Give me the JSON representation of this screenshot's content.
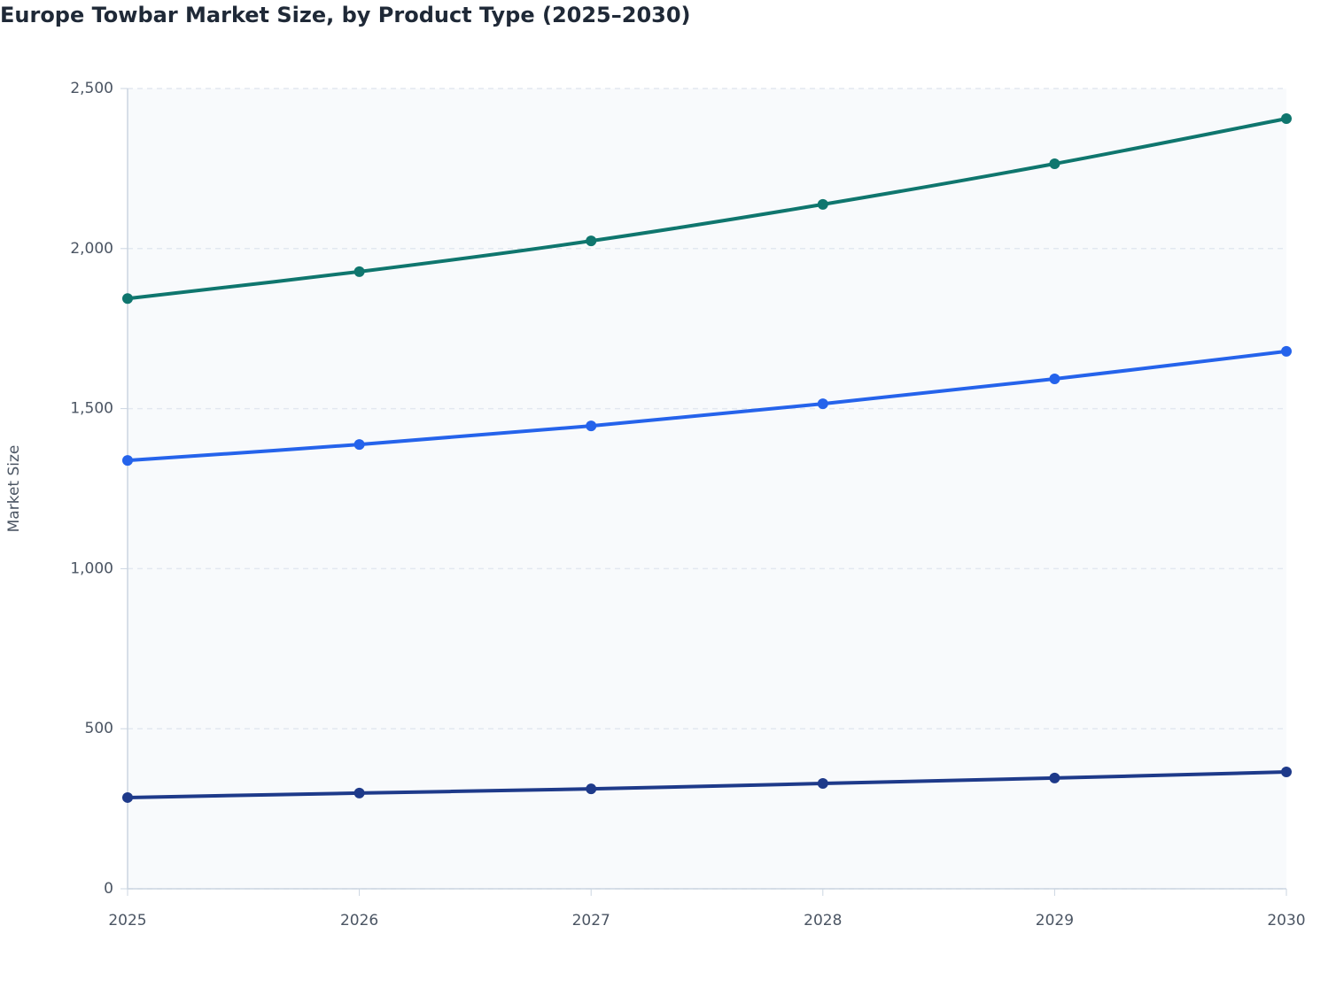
{
  "chart_data": {
    "type": "line",
    "title": "Europe Towbar Market Size, by Product Type (2025–2030)",
    "y_label": "Market Size",
    "x": [
      2025,
      2026,
      2027,
      2028,
      2029,
      2030
    ],
    "xlim": [
      2025,
      2030
    ],
    "xticks": [
      2025,
      2026,
      2027,
      2028,
      2029,
      2030
    ],
    "ylim": [
      0,
      2500
    ],
    "yticks": [
      0,
      500,
      {
        "value": 1000,
        "label": "1,000"
      },
      {
        "value": 1500,
        "label": "1,500"
      },
      {
        "value": 2000,
        "label": "2,000"
      },
      {
        "value": 2500,
        "label": "2,500"
      }
    ],
    "grid": true,
    "series": [
      {
        "color": "#0f766e",
        "values": [
          1844,
          1928,
          2024,
          2138,
          2265,
          2406
        ]
      },
      {
        "color": "#2563eb",
        "values": [
          1338,
          1388,
          1446,
          1515,
          1593,
          1679
        ]
      },
      {
        "color": "#1e3a8a",
        "values": [
          285,
          299,
          312,
          329,
          346,
          365
        ]
      }
    ]
  }
}
